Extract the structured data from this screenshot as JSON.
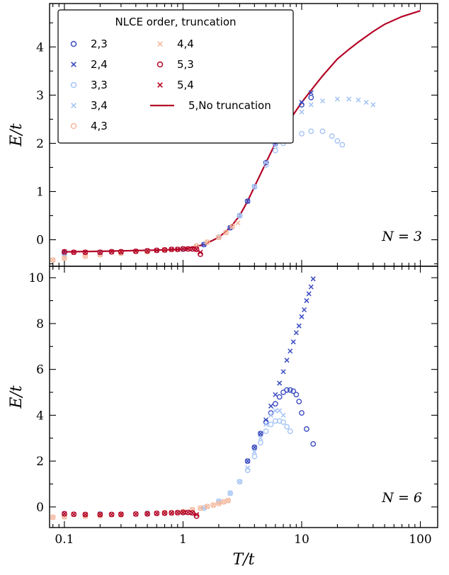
{
  "chart_data": [
    {
      "type": "scatter",
      "panel": "top",
      "xlabel": "",
      "ylabel": "E/t",
      "xscale": "log",
      "xlim": [
        0.075,
        140
      ],
      "ylim": [
        -0.55,
        4.9
      ],
      "yticks": [
        0,
        1,
        2,
        3,
        4
      ],
      "annotation": "N = 3",
      "legend": {
        "title": "NLCE order, truncation",
        "placement": "top-left",
        "entries": [
          {
            "label": "2,3",
            "marker": "circle",
            "color": "#3b4cc0"
          },
          {
            "label": "2,4",
            "marker": "x",
            "color": "#3b4cc0"
          },
          {
            "label": "3,3",
            "marker": "circle",
            "color": "#a5c4f5"
          },
          {
            "label": "3,4",
            "marker": "x",
            "color": "#a5c4f5"
          },
          {
            "label": "4,3",
            "marker": "circle",
            "color": "#f4b89c"
          },
          {
            "label": "4,4",
            "marker": "x",
            "color": "#f4b89c"
          },
          {
            "label": "5,3",
            "marker": "circle",
            "color": "#b40426"
          },
          {
            "label": "5,4",
            "marker": "x",
            "color": "#b40426"
          },
          {
            "label": "5,No truncation",
            "marker": "line",
            "color": "#b40426"
          }
        ]
      },
      "series": [
        {
          "name": "5,No truncation",
          "style": "line",
          "color": "#b40426",
          "x": [
            0.1,
            0.2,
            0.5,
            1,
            1.5,
            2,
            2.5,
            3,
            3.5,
            4,
            5,
            6,
            7,
            8,
            10,
            12,
            15,
            20,
            25,
            30,
            40,
            50,
            70,
            100
          ],
          "y": [
            -0.25,
            -0.24,
            -0.22,
            -0.2,
            -0.1,
            0.05,
            0.25,
            0.5,
            0.8,
            1.1,
            1.6,
            2.0,
            2.3,
            2.5,
            2.85,
            3.1,
            3.4,
            3.75,
            3.95,
            4.1,
            4.32,
            4.47,
            4.63,
            4.75
          ]
        },
        {
          "name": "2,3",
          "marker": "circle",
          "color": "#3b4cc0",
          "x": [
            0.1,
            0.2,
            0.5,
            1,
            1.5,
            2,
            2.5,
            3,
            3.5,
            4,
            5,
            6,
            7,
            8,
            10,
            12
          ],
          "y": [
            -0.27,
            -0.26,
            -0.23,
            -0.2,
            -0.1,
            0.05,
            0.25,
            0.5,
            0.8,
            1.1,
            1.6,
            2.0,
            2.3,
            2.5,
            2.8,
            2.95
          ]
        },
        {
          "name": "2,4",
          "marker": "x",
          "color": "#3b4cc0",
          "x": [
            0.1,
            0.2,
            0.5,
            1,
            1.5,
            2,
            2.5,
            3,
            3.5,
            4,
            5,
            6,
            7,
            8,
            10,
            12
          ],
          "y": [
            -0.27,
            -0.26,
            -0.23,
            -0.2,
            -0.1,
            0.05,
            0.25,
            0.5,
            0.8,
            1.1,
            1.6,
            2.0,
            2.3,
            2.5,
            2.85,
            3.05
          ]
        },
        {
          "name": "3,3",
          "marker": "circle",
          "color": "#a5c4f5",
          "x": [
            0.1,
            0.2,
            0.5,
            1,
            2,
            3,
            4,
            5,
            6,
            7,
            8,
            10,
            12,
            15,
            18,
            20,
            22
          ],
          "y": [
            -0.3,
            -0.27,
            -0.23,
            -0.2,
            0.05,
            0.5,
            1.1,
            1.55,
            1.85,
            2.0,
            2.1,
            2.2,
            2.25,
            2.25,
            2.15,
            2.05,
            1.97
          ]
        },
        {
          "name": "3,4",
          "marker": "x",
          "color": "#a5c4f5",
          "x": [
            0.1,
            0.2,
            0.5,
            1,
            2,
            3,
            4,
            5,
            6,
            8,
            10,
            12,
            15,
            20,
            25,
            30,
            35,
            40
          ],
          "y": [
            -0.3,
            -0.27,
            -0.23,
            -0.2,
            0.05,
            0.5,
            1.1,
            1.6,
            1.95,
            2.4,
            2.65,
            2.8,
            2.88,
            2.92,
            2.92,
            2.9,
            2.85,
            2.8
          ]
        },
        {
          "name": "4,3",
          "marker": "circle",
          "color": "#f4b89c",
          "x": [
            0.08,
            0.1,
            0.15,
            0.2,
            0.3,
            0.5,
            0.7,
            1,
            1.3,
            1.6,
            2,
            2.3,
            2.6
          ],
          "y": [
            -0.42,
            -0.38,
            -0.34,
            -0.31,
            -0.28,
            -0.25,
            -0.22,
            -0.19,
            -0.13,
            -0.05,
            0.05,
            0.15,
            0.28
          ]
        },
        {
          "name": "4,4",
          "marker": "x",
          "color": "#f4b89c",
          "x": [
            0.08,
            0.1,
            0.15,
            0.2,
            0.3,
            0.5,
            0.7,
            1,
            1.3,
            1.6,
            2,
            2.3,
            2.6,
            2.9
          ],
          "y": [
            -0.42,
            -0.38,
            -0.34,
            -0.31,
            -0.28,
            -0.25,
            -0.22,
            -0.19,
            -0.13,
            -0.05,
            0.05,
            0.15,
            0.27,
            0.35
          ]
        },
        {
          "name": "5,3",
          "marker": "circle",
          "color": "#b40426",
          "x": [
            0.1,
            0.12,
            0.15,
            0.2,
            0.25,
            0.3,
            0.4,
            0.5,
            0.6,
            0.7,
            0.8,
            0.9,
            1.0,
            1.1,
            1.2,
            1.3,
            1.4
          ],
          "y": [
            -0.25,
            -0.26,
            -0.26,
            -0.26,
            -0.25,
            -0.25,
            -0.24,
            -0.23,
            -0.22,
            -0.21,
            -0.2,
            -0.2,
            -0.19,
            -0.19,
            -0.19,
            -0.2,
            -0.3
          ]
        },
        {
          "name": "5,4",
          "marker": "x",
          "color": "#b40426",
          "x": [
            0.1,
            0.12,
            0.15,
            0.2,
            0.25,
            0.3,
            0.4,
            0.5,
            0.6,
            0.7,
            0.8,
            0.9,
            1.0,
            1.1,
            1.2,
            1.3,
            1.4
          ],
          "y": [
            -0.25,
            -0.26,
            -0.26,
            -0.26,
            -0.25,
            -0.25,
            -0.24,
            -0.23,
            -0.22,
            -0.21,
            -0.2,
            -0.2,
            -0.19,
            -0.19,
            -0.19,
            -0.2,
            -0.26
          ]
        }
      ]
    },
    {
      "type": "scatter",
      "panel": "bottom",
      "xlabel": "T/t",
      "ylabel": "E/t",
      "xscale": "log",
      "xlim": [
        0.075,
        140
      ],
      "ylim": [
        -0.9,
        10.5
      ],
      "yticks": [
        0,
        2,
        4,
        6,
        8,
        10
      ],
      "xticks": [
        0.1,
        1,
        10,
        100
      ],
      "xticklabels": [
        "0.1",
        "1",
        "10",
        "100"
      ],
      "annotation": "N = 6",
      "series": [
        {
          "name": "2,3",
          "marker": "circle",
          "color": "#3b4cc0",
          "x": [
            3.5,
            4,
            4.5,
            5,
            5.5,
            6,
            6.5,
            7,
            7.5,
            8,
            8.5,
            9,
            9.5,
            10,
            11,
            12.5
          ],
          "y": [
            2.0,
            2.6,
            3.2,
            3.7,
            4.1,
            4.5,
            4.8,
            5.0,
            5.1,
            5.1,
            5.05,
            4.9,
            4.6,
            4.1,
            3.4,
            2.75
          ]
        },
        {
          "name": "2,4",
          "marker": "x",
          "color": "#3b4cc0",
          "x": [
            3.5,
            4,
            4.5,
            5,
            5.5,
            6,
            6.5,
            7,
            7.5,
            8,
            8.5,
            9,
            9.5,
            10,
            10.5,
            11,
            11.5,
            12,
            12.5
          ],
          "y": [
            2.0,
            2.6,
            3.2,
            3.8,
            4.4,
            4.9,
            5.4,
            5.9,
            6.4,
            6.8,
            7.2,
            7.6,
            7.9,
            8.3,
            8.6,
            9.0,
            9.3,
            9.6,
            9.95
          ]
        },
        {
          "name": "3,3",
          "marker": "circle",
          "color": "#a5c4f5",
          "x": [
            0.1,
            0.2,
            0.5,
            1,
            1.5,
            2,
            2.5,
            3,
            3.5,
            4,
            4.5,
            5,
            5.5,
            6,
            6.5,
            7,
            7.5,
            8
          ],
          "y": [
            -0.3,
            -0.3,
            -0.28,
            -0.25,
            -0.05,
            0.25,
            0.6,
            1.1,
            1.6,
            2.2,
            2.8,
            3.3,
            3.6,
            3.75,
            3.75,
            3.7,
            3.5,
            3.3
          ]
        },
        {
          "name": "3,4",
          "marker": "x",
          "color": "#a5c4f5",
          "x": [
            0.1,
            0.2,
            0.5,
            1,
            1.5,
            2,
            2.5,
            3,
            3.5,
            4,
            4.5,
            5,
            5.5,
            6,
            6.5,
            7
          ],
          "y": [
            -0.3,
            -0.3,
            -0.28,
            -0.25,
            -0.05,
            0.25,
            0.6,
            1.1,
            1.7,
            2.4,
            3.0,
            3.6,
            4.0,
            4.2,
            4.2,
            4.0
          ]
        },
        {
          "name": "4,3",
          "marker": "circle",
          "color": "#f4b89c",
          "x": [
            0.08,
            0.1,
            0.15,
            0.2,
            0.3,
            0.5,
            0.7,
            1,
            1.2,
            1.4,
            1.6,
            1.8,
            2,
            2.2,
            2.4
          ],
          "y": [
            -0.45,
            -0.43,
            -0.4,
            -0.38,
            -0.35,
            -0.3,
            -0.25,
            -0.2,
            -0.12,
            -0.05,
            0.02,
            0.08,
            0.15,
            0.22,
            0.28
          ]
        },
        {
          "name": "4,4",
          "marker": "x",
          "color": "#f4b89c",
          "x": [
            0.08,
            0.1,
            0.15,
            0.2,
            0.3,
            0.5,
            0.7,
            1,
            1.2,
            1.4,
            1.6,
            1.8,
            2,
            2.2,
            2.4
          ],
          "y": [
            -0.45,
            -0.43,
            -0.4,
            -0.38,
            -0.35,
            -0.3,
            -0.25,
            -0.2,
            -0.12,
            -0.05,
            0.02,
            0.08,
            0.15,
            0.22,
            0.28
          ]
        },
        {
          "name": "5,3",
          "marker": "circle",
          "color": "#b40426",
          "x": [
            0.1,
            0.12,
            0.15,
            0.2,
            0.25,
            0.3,
            0.4,
            0.5,
            0.6,
            0.7,
            0.8,
            0.9,
            1.0,
            1.1,
            1.2,
            1.3
          ],
          "y": [
            -0.3,
            -0.32,
            -0.33,
            -0.33,
            -0.33,
            -0.32,
            -0.31,
            -0.3,
            -0.28,
            -0.27,
            -0.26,
            -0.25,
            -0.24,
            -0.24,
            -0.26,
            -0.4
          ]
        },
        {
          "name": "5,4",
          "marker": "x",
          "color": "#b40426",
          "x": [
            0.1,
            0.12,
            0.15,
            0.2,
            0.25,
            0.3,
            0.4,
            0.5,
            0.6,
            0.7,
            0.8,
            0.9,
            1.0,
            1.1,
            1.2,
            1.3
          ],
          "y": [
            -0.3,
            -0.32,
            -0.33,
            -0.33,
            -0.33,
            -0.32,
            -0.31,
            -0.3,
            -0.28,
            -0.27,
            -0.26,
            -0.25,
            -0.24,
            -0.24,
            -0.26,
            -0.33
          ]
        }
      ]
    }
  ]
}
